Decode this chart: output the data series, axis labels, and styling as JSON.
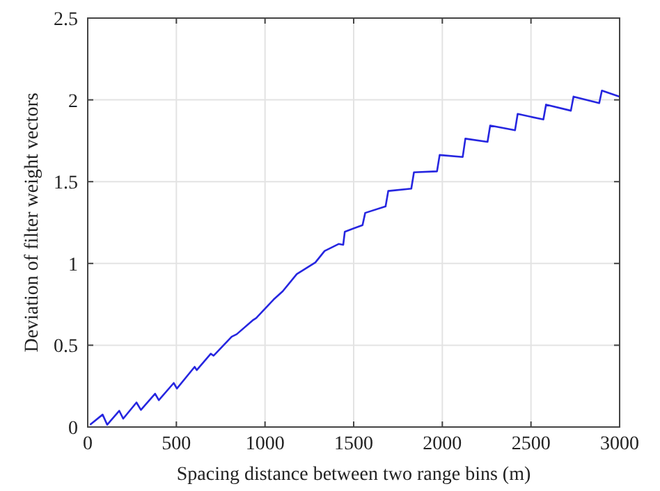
{
  "chart_data": {
    "type": "line",
    "xlabel": "Spacing distance between two range bins (m)",
    "ylabel": "Deviation of filter weight vectors",
    "xlim": [
      0,
      3000
    ],
    "xticks": [
      0,
      500,
      1000,
      1500,
      2000,
      2500,
      3000
    ],
    "ylim": [
      0,
      2.5
    ],
    "yticks": [
      0,
      0.5,
      1,
      1.5,
      2,
      2.5
    ],
    "grid": true,
    "x": [
      13,
      84,
      110,
      178,
      200,
      275,
      300,
      380,
      401,
      485,
      503,
      603,
      615,
      694,
      710,
      812,
      840,
      930,
      950,
      1048,
      1100,
      1179,
      1284,
      1336,
      1415,
      1441,
      1450,
      1550,
      1565,
      1680,
      1695,
      1825,
      1840,
      1970,
      1985,
      2115,
      2130,
      2255,
      2270,
      2410,
      2425,
      2570,
      2585,
      2725,
      2740,
      2885,
      2900,
      3000
    ],
    "series": [
      {
        "color": "#2626e0",
        "values": [
          0.014,
          0.076,
          0.014,
          0.099,
          0.051,
          0.15,
          0.105,
          0.204,
          0.164,
          0.269,
          0.235,
          0.368,
          0.348,
          0.448,
          0.436,
          0.552,
          0.567,
          0.652,
          0.666,
          0.779,
          0.83,
          0.935,
          1.006,
          1.076,
          1.119,
          1.114,
          1.194,
          1.234,
          1.309,
          1.349,
          1.443,
          1.457,
          1.557,
          1.563,
          1.663,
          1.651,
          1.763,
          1.743,
          1.843,
          1.814,
          1.914,
          1.88,
          1.971,
          1.934,
          2.02,
          1.98,
          2.057,
          2.02
        ]
      }
    ]
  }
}
